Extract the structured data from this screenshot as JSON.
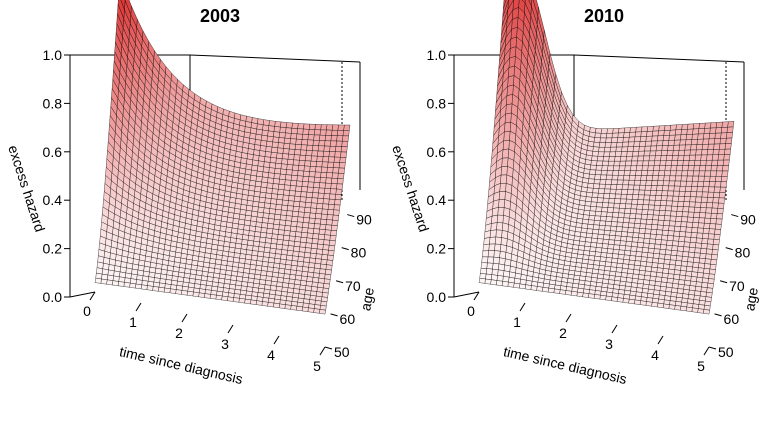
{
  "chart_data": [
    {
      "type": "surface3d",
      "title": "2003",
      "xlabel": "time since diagnosis",
      "ylabel": "age",
      "zlabel": "excess hazard",
      "xlim": [
        0,
        5
      ],
      "ylim": [
        50,
        95
      ],
      "zlim": [
        0.0,
        1.0
      ],
      "x_ticks": [
        "0",
        "1",
        "2",
        "3",
        "4",
        "5"
      ],
      "y_ticks": [
        "50",
        "60",
        "70",
        "80",
        "90"
      ],
      "z_ticks": [
        "0.0",
        "0.2",
        "0.4",
        "0.6",
        "0.8",
        "1.0"
      ],
      "surface_color": "#dd3333",
      "mesh": "black",
      "shape": {
        "corner_peak": 0.83,
        "peak_time": 0.0,
        "peak_age": 95,
        "far_age_end_value": 0.38
      }
    },
    {
      "type": "surface3d",
      "title": "2010",
      "xlabel": "time since diagnosis",
      "ylabel": "age",
      "zlabel": "excess hazard",
      "xlim": [
        0,
        5
      ],
      "ylim": [
        50,
        95
      ],
      "zlim": [
        0.0,
        1.0
      ],
      "x_ticks": [
        "0",
        "1",
        "2",
        "3",
        "4",
        "5"
      ],
      "y_ticks": [
        "50",
        "60",
        "70",
        "80",
        "90"
      ],
      "z_ticks": [
        "0.0",
        "0.2",
        "0.4",
        "0.6",
        "0.8",
        "1.0"
      ],
      "surface_color": "#dd3333",
      "mesh": "black",
      "shape": {
        "corner_peak": 0.94,
        "peak_time": 0.4,
        "peak_age": 95,
        "far_age_end_value": 0.43
      }
    }
  ]
}
